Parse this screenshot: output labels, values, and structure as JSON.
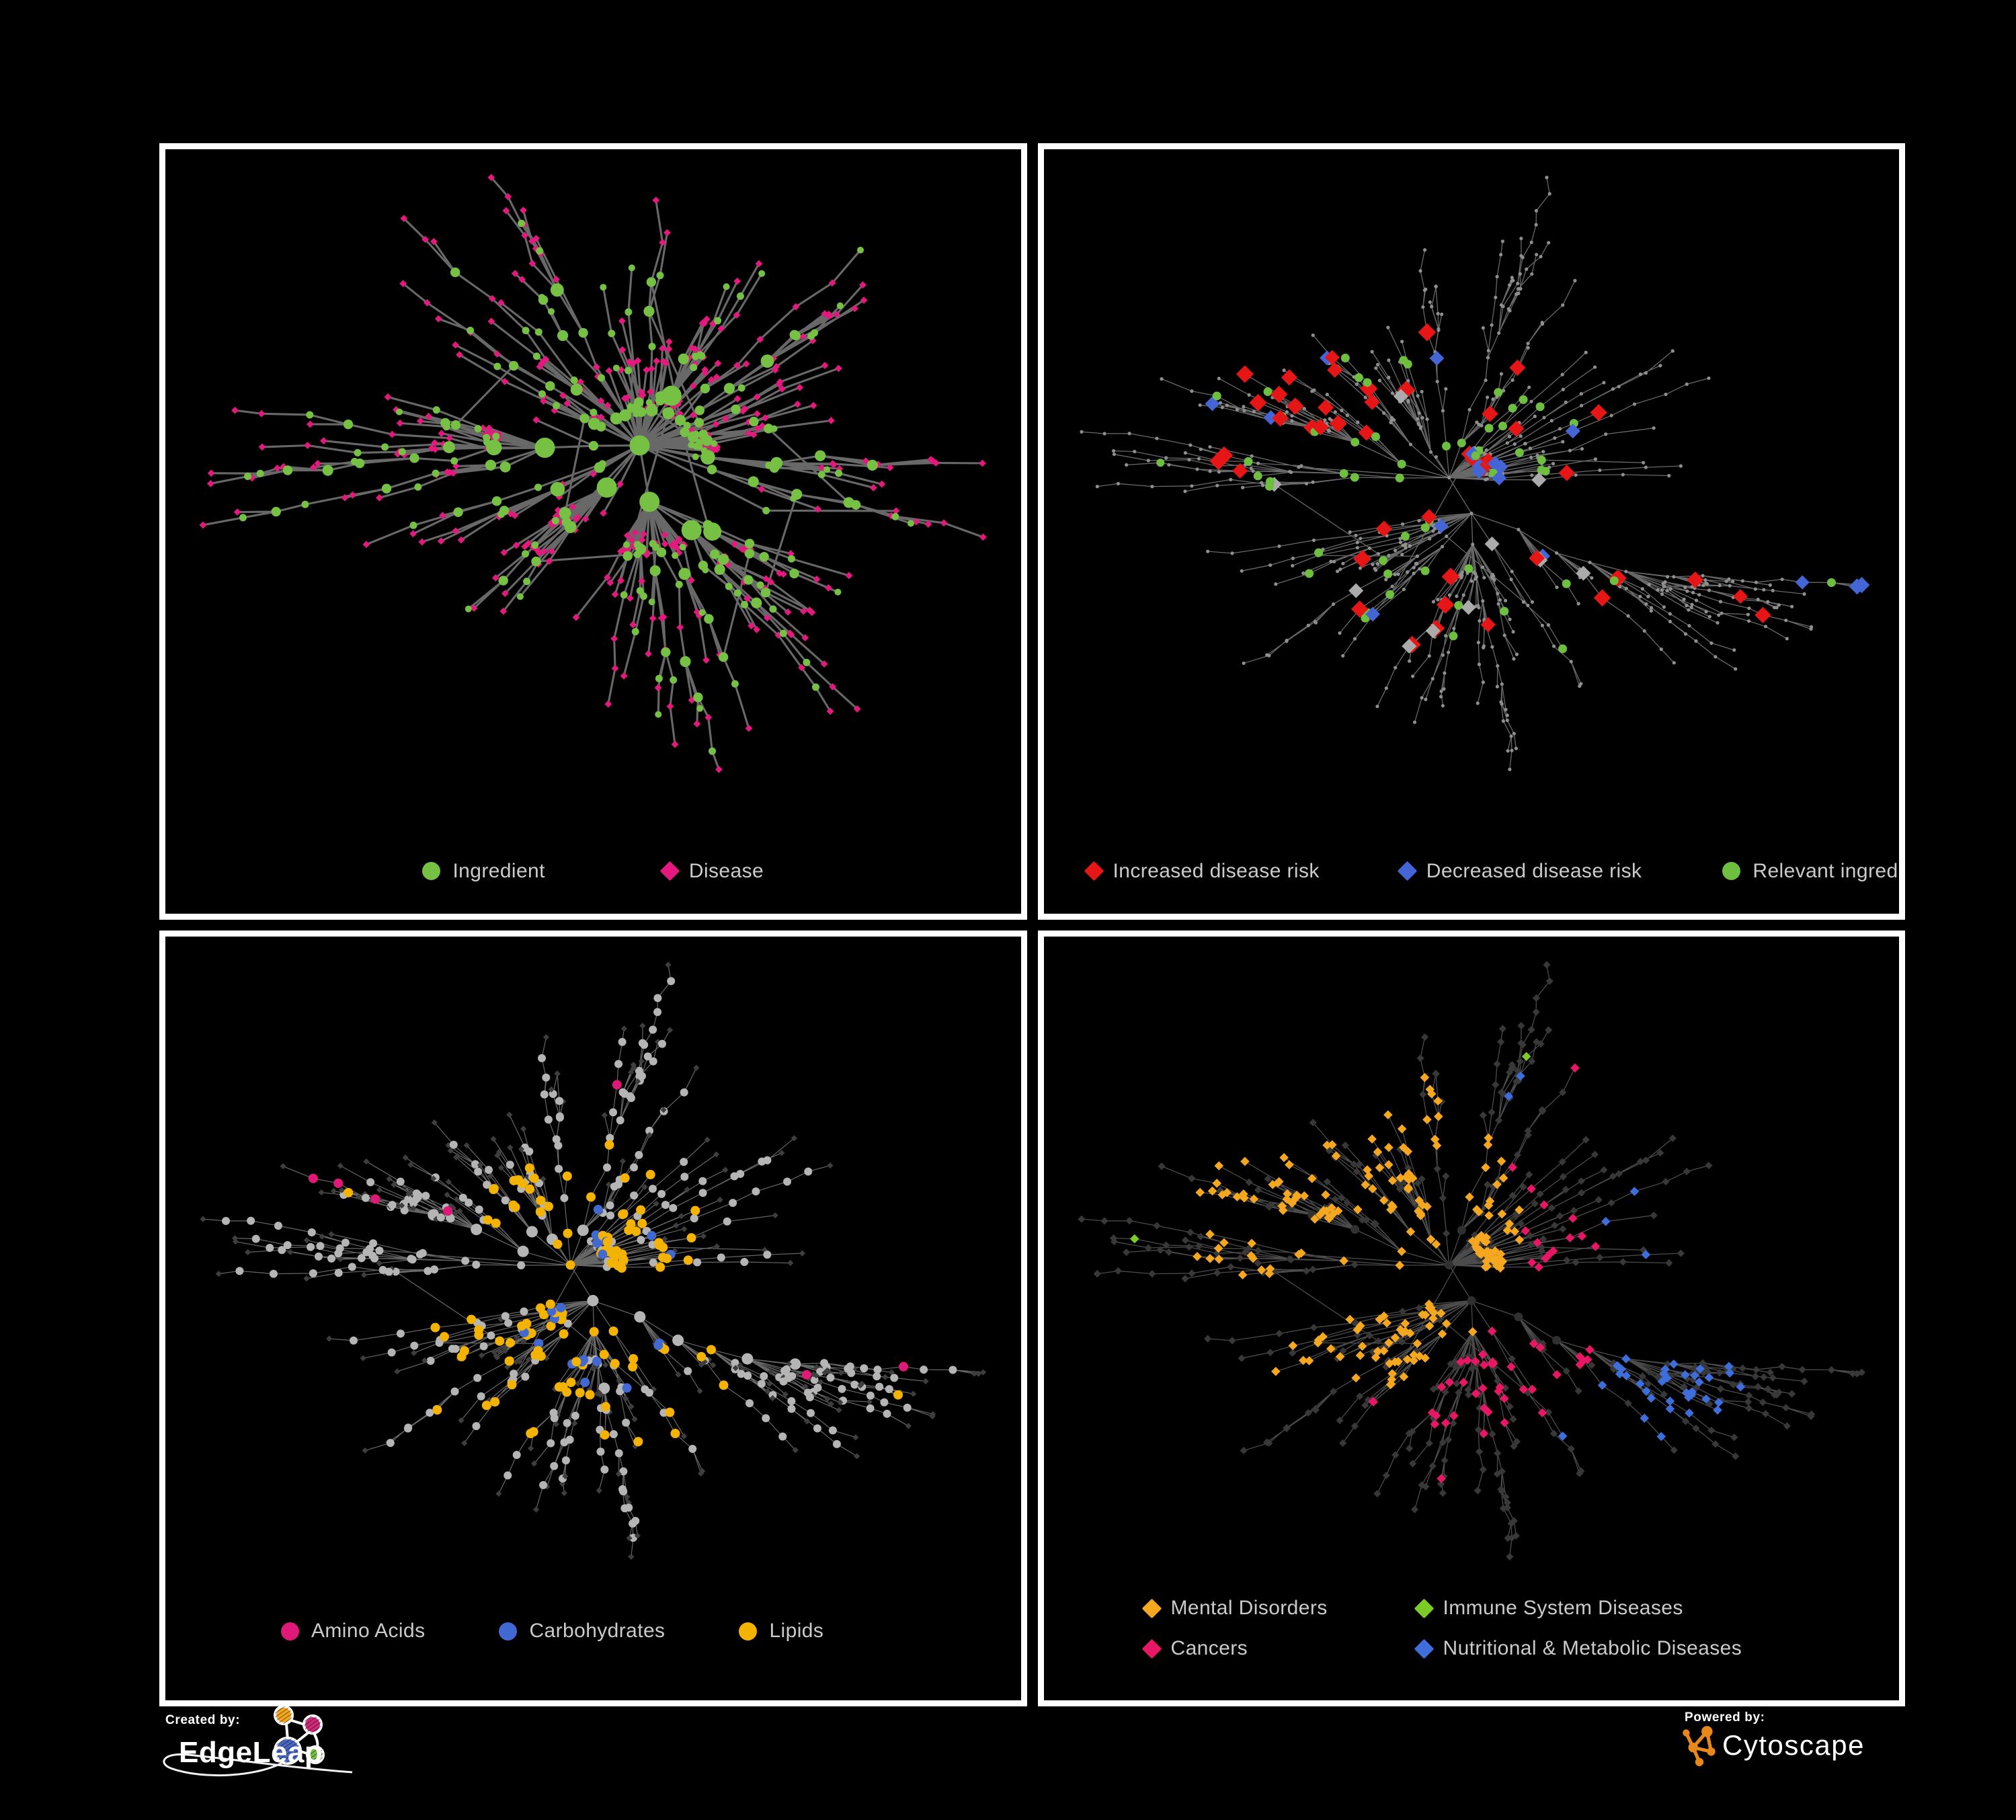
{
  "page": {
    "background": "#000000",
    "panel_border": "#ffffff",
    "legend_text_color": "#cbcbcb"
  },
  "figure": {
    "description": "Four network graph panels of an ingredient-disease association network, each panel highlighting different node categories",
    "layouts": {
      "A": {
        "seed": 101,
        "nodes": 610,
        "chain": 0.36,
        "extra_edge_ratio": 0.06
      },
      "B": {
        "seed": 202,
        "nodes": 730,
        "chain": 0.5,
        "extra_edge_ratio": 0.045
      }
    }
  },
  "panels": [
    {
      "id": "ingredient-disease",
      "layout": "A",
      "color_seed": 7,
      "style": {
        "edge_color": "#6E6E6E",
        "edge_width": 3.1,
        "edge_opacity": 0.95,
        "green": "#76C043",
        "pink": "#E3197E"
      },
      "legend": [
        {
          "label": "Ingredient",
          "shape": "circle",
          "color": "#76C043"
        },
        {
          "label": "Disease",
          "shape": "diamond",
          "color": "#E3197E"
        }
      ]
    },
    {
      "id": "disease-risk",
      "layout": "B",
      "color_seed": 8,
      "style": {
        "edge_color": "#7A7A7A",
        "edge_width": 1.3,
        "edge_opacity": 0.85,
        "base": "#8F8F8F",
        "red": "#E61616",
        "blue": "#4365D6",
        "gray": "#ABABAB",
        "green": "#6EBE3F"
      },
      "legend": [
        {
          "label": "Increased disease risk",
          "shape": "diamond",
          "color": "#E61616"
        },
        {
          "label": "Decreased disease risk",
          "shape": "diamond",
          "color": "#4365D6"
        },
        {
          "label": "Relevant ingredient",
          "shape": "circle",
          "color": "#6EBE3F"
        }
      ]
    },
    {
      "id": "nutrient-classes",
      "layout": "B",
      "color_seed": 9,
      "style": {
        "edge_color": "#9E9E9E",
        "edge_width": 1.2,
        "edge_opacity": 0.65,
        "base_circle": "#B5B5B5",
        "base_diamond": "#3E3E3E",
        "pink": "#E01878",
        "blue": "#4169D1",
        "yellow": "#F5B301"
      },
      "legend": [
        {
          "label": "Amino Acids",
          "shape": "circle",
          "color": "#E01878"
        },
        {
          "label": "Carbohydrates",
          "shape": "circle",
          "color": "#4169D1"
        },
        {
          "label": "Lipids",
          "shape": "circle",
          "color": "#F5B301"
        }
      ]
    },
    {
      "id": "disease-classes",
      "layout": "B",
      "color_seed": 10,
      "style": {
        "edge_color": "#5E5E5E",
        "edge_width": 1.3,
        "edge_opacity": 0.8,
        "base": "#383838",
        "hub": "#303030",
        "orange": "#F4A71F",
        "green": "#7CCB27",
        "pink": "#E81765",
        "blue": "#3E6EDC"
      },
      "legend": [
        {
          "label": "Mental Disorders",
          "shape": "diamond",
          "color": "#F4A71F"
        },
        {
          "label": "Immune System Diseases",
          "shape": "diamond",
          "color": "#7CCB27"
        },
        {
          "label": "Cancers",
          "shape": "diamond",
          "color": "#E81765"
        },
        {
          "label": "Nutritional & Metabolic Diseases",
          "shape": "diamond",
          "color": "#3E6EDC"
        }
      ]
    }
  ],
  "footer": {
    "created_by_label": "Created by:",
    "created_by_name": "EdgeLeap",
    "powered_by_label": "Powered by:",
    "powered_by_name": "Cytoscape",
    "edgeleap_logo_colors": {
      "orange": "#F2A71C",
      "pink": "#CE2A7A",
      "blue": "#4A66C0",
      "green": "#76C043"
    },
    "cytoscape_color": "#E8871A"
  }
}
